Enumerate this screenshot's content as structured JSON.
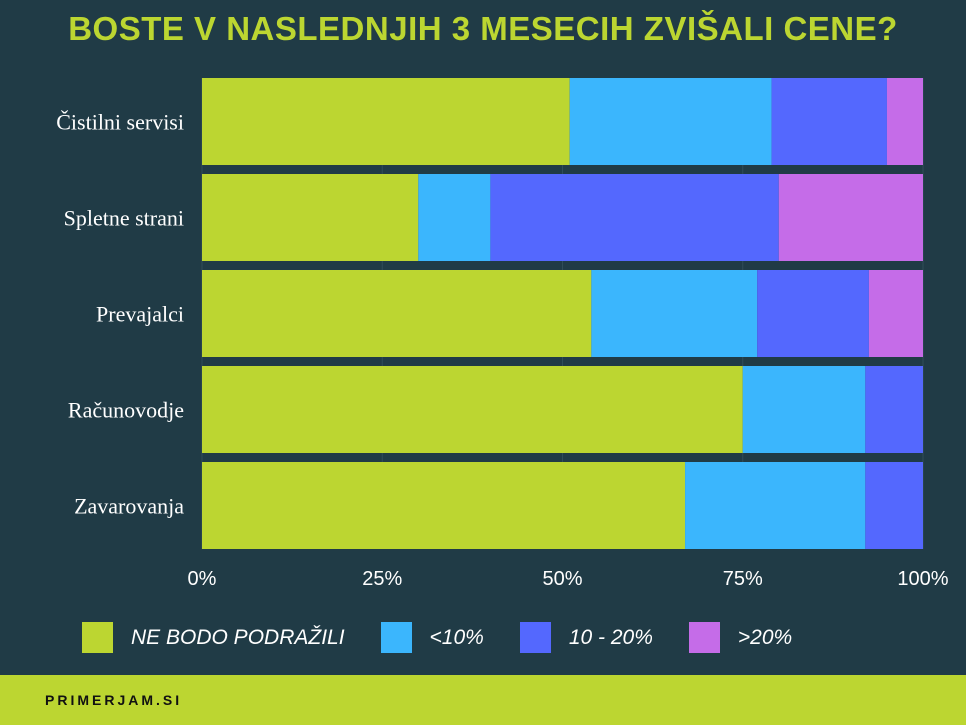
{
  "chart_data": {
    "type": "bar",
    "orientation": "horizontal",
    "stacked": true,
    "title": "BOSTE V NASLEDNJIH 3 MESECIH ZVIŠALI CENE?",
    "categories": [
      "Čistilni servisi",
      "Spletne strani",
      "Prevajalci",
      "Računovodje",
      "Zavarovanja"
    ],
    "series": [
      {
        "name": "NE BODO PODRAŽILI",
        "color": "#bcd631",
        "values": [
          51,
          30,
          54,
          75,
          67
        ]
      },
      {
        "name": "<10%",
        "color": "#3bb6fd",
        "values": [
          28,
          10,
          23,
          17,
          25
        ]
      },
      {
        "name": "10 - 20%",
        "color": "#5468fe",
        "values": [
          16,
          40,
          15.5,
          8,
          8
        ]
      },
      {
        "name": ">20%",
        "color": "#c56ce8",
        "values": [
          5,
          20,
          7.5,
          0,
          0
        ]
      }
    ],
    "xlim": [
      0,
      100
    ],
    "xticks": [
      "0%",
      "25%",
      "50%",
      "75%",
      "100%"
    ],
    "grid": true,
    "legend": "bottom"
  },
  "footer": {
    "brand": "PRIMERJAM.SI"
  },
  "colors": {
    "background": "#203b46",
    "accent": "#bcd631"
  }
}
